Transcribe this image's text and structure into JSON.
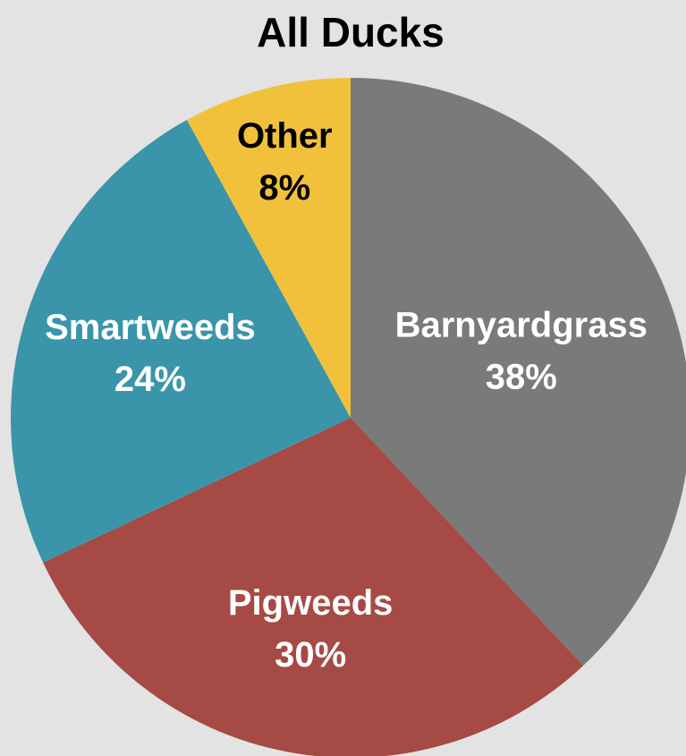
{
  "chart_data": {
    "type": "pie",
    "title": "All Ducks",
    "slices": [
      {
        "label": "Barnyardgrass",
        "value": 38,
        "value_label": "38%",
        "color": "#7a7a7a",
        "label_color": "#ffffff"
      },
      {
        "label": "Pigweeds",
        "value": 30,
        "value_label": "30%",
        "color": "#a54a44",
        "label_color": "#ffffff"
      },
      {
        "label": "Smartweeds",
        "value": 24,
        "value_label": "24%",
        "color": "#3a95aa",
        "label_color": "#ffffff"
      },
      {
        "label": "Other",
        "value": 8,
        "value_label": "8%",
        "color": "#f2c13c",
        "label_color": "#000000"
      }
    ],
    "start_angle_deg": 0,
    "direction": "clockwise",
    "legend": "none"
  }
}
